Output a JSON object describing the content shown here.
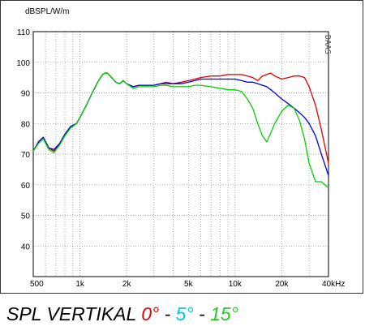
{
  "chart_data": {
    "type": "line",
    "title": "",
    "ylabel": "dBSPL/W/m",
    "xlabel": "",
    "xscale": "log",
    "xlim": [
      500,
      40000
    ],
    "ylim": [
      30,
      110
    ],
    "grid": true,
    "watermark": "DAAS",
    "x_ticks": [
      {
        "value": 500,
        "label": "500"
      },
      {
        "value": 1000,
        "label": "1k"
      },
      {
        "value": 2000,
        "label": "2k"
      },
      {
        "value": 5000,
        "label": "5k"
      },
      {
        "value": 10000,
        "label": "10k"
      },
      {
        "value": 20000,
        "label": "20k"
      },
      {
        "value": 40000,
        "label": "40kHz"
      }
    ],
    "y_ticks": [
      110,
      100,
      90,
      80,
      70,
      60,
      50,
      40
    ],
    "series": [
      {
        "color": "#e00000",
        "x": [
          500,
          540,
          580,
          630,
          680,
          740,
          800,
          870,
          950,
          1000,
          1100,
          1200,
          1300,
          1400,
          1450,
          1500,
          1600,
          1700,
          1800,
          1900,
          2000,
          2200,
          2400,
          2600,
          2800,
          3000,
          3300,
          3600,
          4000,
          4500,
          5000,
          5500,
          6000,
          7000,
          8000,
          9000,
          10000,
          11000,
          12000,
          13000,
          14000,
          15000,
          16000,
          17000,
          18000,
          20000,
          22000,
          24000,
          26000,
          28000,
          30000,
          33000,
          36000,
          40000
        ],
        "y": [
          71,
          74,
          75.5,
          72,
          71,
          73.5,
          76.5,
          79,
          80,
          82,
          86,
          90,
          93.5,
          96,
          96.5,
          96.5,
          95,
          93.5,
          93,
          94,
          93,
          92,
          92.5,
          92.5,
          92.5,
          92.5,
          93,
          93.5,
          93,
          93.5,
          94,
          94.5,
          95,
          95.5,
          95.5,
          96,
          96,
          96,
          95.5,
          95,
          94,
          95.5,
          96,
          96.5,
          95.5,
          94.5,
          95,
          95.5,
          95.5,
          95,
          92,
          86,
          78,
          67
        ]
      },
      {
        "color": "#0000e0",
        "x": [
          500,
          540,
          580,
          630,
          680,
          740,
          800,
          870,
          950,
          1000,
          1100,
          1200,
          1300,
          1400,
          1450,
          1500,
          1600,
          1700,
          1800,
          1900,
          2000,
          2200,
          2400,
          2600,
          2800,
          3000,
          3300,
          3600,
          4000,
          4500,
          5000,
          5500,
          6000,
          7000,
          8000,
          9000,
          10000,
          11000,
          12000,
          13000,
          14000,
          15000,
          16000,
          17000,
          18000,
          20000,
          22000,
          24000,
          26000,
          28000,
          30000,
          33000,
          36000,
          40000
        ],
        "y": [
          71,
          74,
          75.5,
          72,
          71.5,
          73.5,
          76.5,
          79,
          80,
          82,
          86,
          90,
          93.5,
          96,
          96.5,
          96.5,
          95,
          93.5,
          93,
          94,
          93,
          92,
          92.5,
          92.5,
          92.5,
          92.5,
          93,
          93,
          93,
          93,
          93.5,
          94,
          94.5,
          94.5,
          94.5,
          94.5,
          94.5,
          94,
          93.5,
          93.5,
          93,
          92.5,
          92,
          91,
          90,
          88,
          86.5,
          85,
          83.5,
          82,
          80,
          76,
          70,
          63
        ]
      },
      {
        "color": "#00d000",
        "x": [
          500,
          540,
          580,
          630,
          680,
          740,
          800,
          870,
          950,
          1000,
          1100,
          1200,
          1300,
          1400,
          1450,
          1500,
          1600,
          1700,
          1800,
          1900,
          2000,
          2200,
          2400,
          2600,
          2800,
          3000,
          3300,
          3600,
          4000,
          4500,
          5000,
          5500,
          6000,
          7000,
          8000,
          9000,
          10000,
          11000,
          12000,
          13000,
          14000,
          15000,
          16000,
          17000,
          18000,
          20000,
          22000,
          24000,
          26000,
          28000,
          30000,
          33000,
          36000,
          40000
        ],
        "y": [
          71,
          73.5,
          75,
          71.5,
          70.5,
          73,
          76,
          78.5,
          80,
          82,
          86,
          90,
          93.5,
          96,
          96.5,
          96.5,
          95,
          93.5,
          93,
          94,
          93,
          91.5,
          92,
          92,
          92,
          92,
          92.5,
          92.5,
          92,
          92,
          92,
          92.5,
          92.5,
          92,
          91.5,
          91,
          91,
          90.5,
          88,
          85,
          80,
          76,
          74,
          77,
          80,
          84,
          86,
          85,
          81,
          75,
          67,
          61,
          61,
          59
        ]
      }
    ]
  },
  "caption": {
    "prefix": "SPL VERTIKAL ",
    "a0": "0°",
    "sep1": " - ",
    "a5": "5°",
    "sep2": " - ",
    "a15": "15°",
    "color_a0": "#e00000",
    "color_a5": "#00c8e8",
    "color_a15": "#22cc22"
  }
}
